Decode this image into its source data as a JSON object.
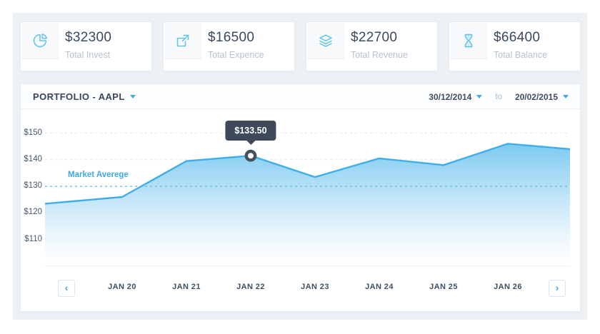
{
  "header_cards": [
    {
      "icon": "pie-chart-icon",
      "value": "$32300",
      "label": "Total Invest"
    },
    {
      "icon": "expand-icon",
      "value": "$16500",
      "label": "Total Expence"
    },
    {
      "icon": "layers-icon",
      "value": "$22700",
      "label": "Total Revenue"
    },
    {
      "icon": "hourglass-icon",
      "value": "$66400",
      "label": "Total Balance"
    }
  ],
  "portfolio": {
    "title": "PORTFOLIO - AAPL",
    "date_from": "30/12/2014",
    "to_label": "to",
    "date_to": "20/02/2015"
  },
  "chart_data": {
    "type": "area",
    "title": "PORTFOLIO - AAPL stock price",
    "x_labels": [
      "JAN 20",
      "JAN 21",
      "JAN 22",
      "JAN 23",
      "JAN 24",
      "JAN 25",
      "JAN 26"
    ],
    "series": [
      {
        "name": "AAPL",
        "x": [
          "left-edge",
          "JAN 20",
          "JAN 21",
          "JAN 22",
          "JAN 23",
          "JAN 24",
          "JAN 25",
          "JAN 26",
          "right-edge"
        ],
        "values": [
          123.5,
          126,
          139.5,
          141.5,
          133.5,
          140.5,
          138,
          146,
          144
        ]
      }
    ],
    "y_ticks": [
      {
        "label": "$150",
        "value": 150
      },
      {
        "label": "$140",
        "value": 140
      },
      {
        "label": "$130",
        "value": 130
      },
      {
        "label": "$120",
        "value": 120
      },
      {
        "label": "$110",
        "value": 110
      }
    ],
    "ylim": [
      100,
      155.5
    ],
    "grid": "horizontal dashed",
    "legend": "none",
    "market_average": {
      "label": "Market Averege",
      "value": 130
    },
    "tooltip": {
      "text": "$133.50",
      "point_index": 3
    },
    "highlight_point_index": 3
  },
  "axis_nav": {
    "prev": "‹",
    "next": "›"
  },
  "colors": {
    "accent_blue": "#41aae3",
    "line_blue": "#3fade8",
    "area_top": "#74c7f0",
    "tooltip_bg": "#3e4a59",
    "marker_ring": "#46505c",
    "text_dark": "#3d4e60",
    "text_muted": "#b8c2cc",
    "grid_line": "#dfe6ec",
    "market_line": "#55b8e9",
    "panel_bg": "#edf1f6"
  }
}
